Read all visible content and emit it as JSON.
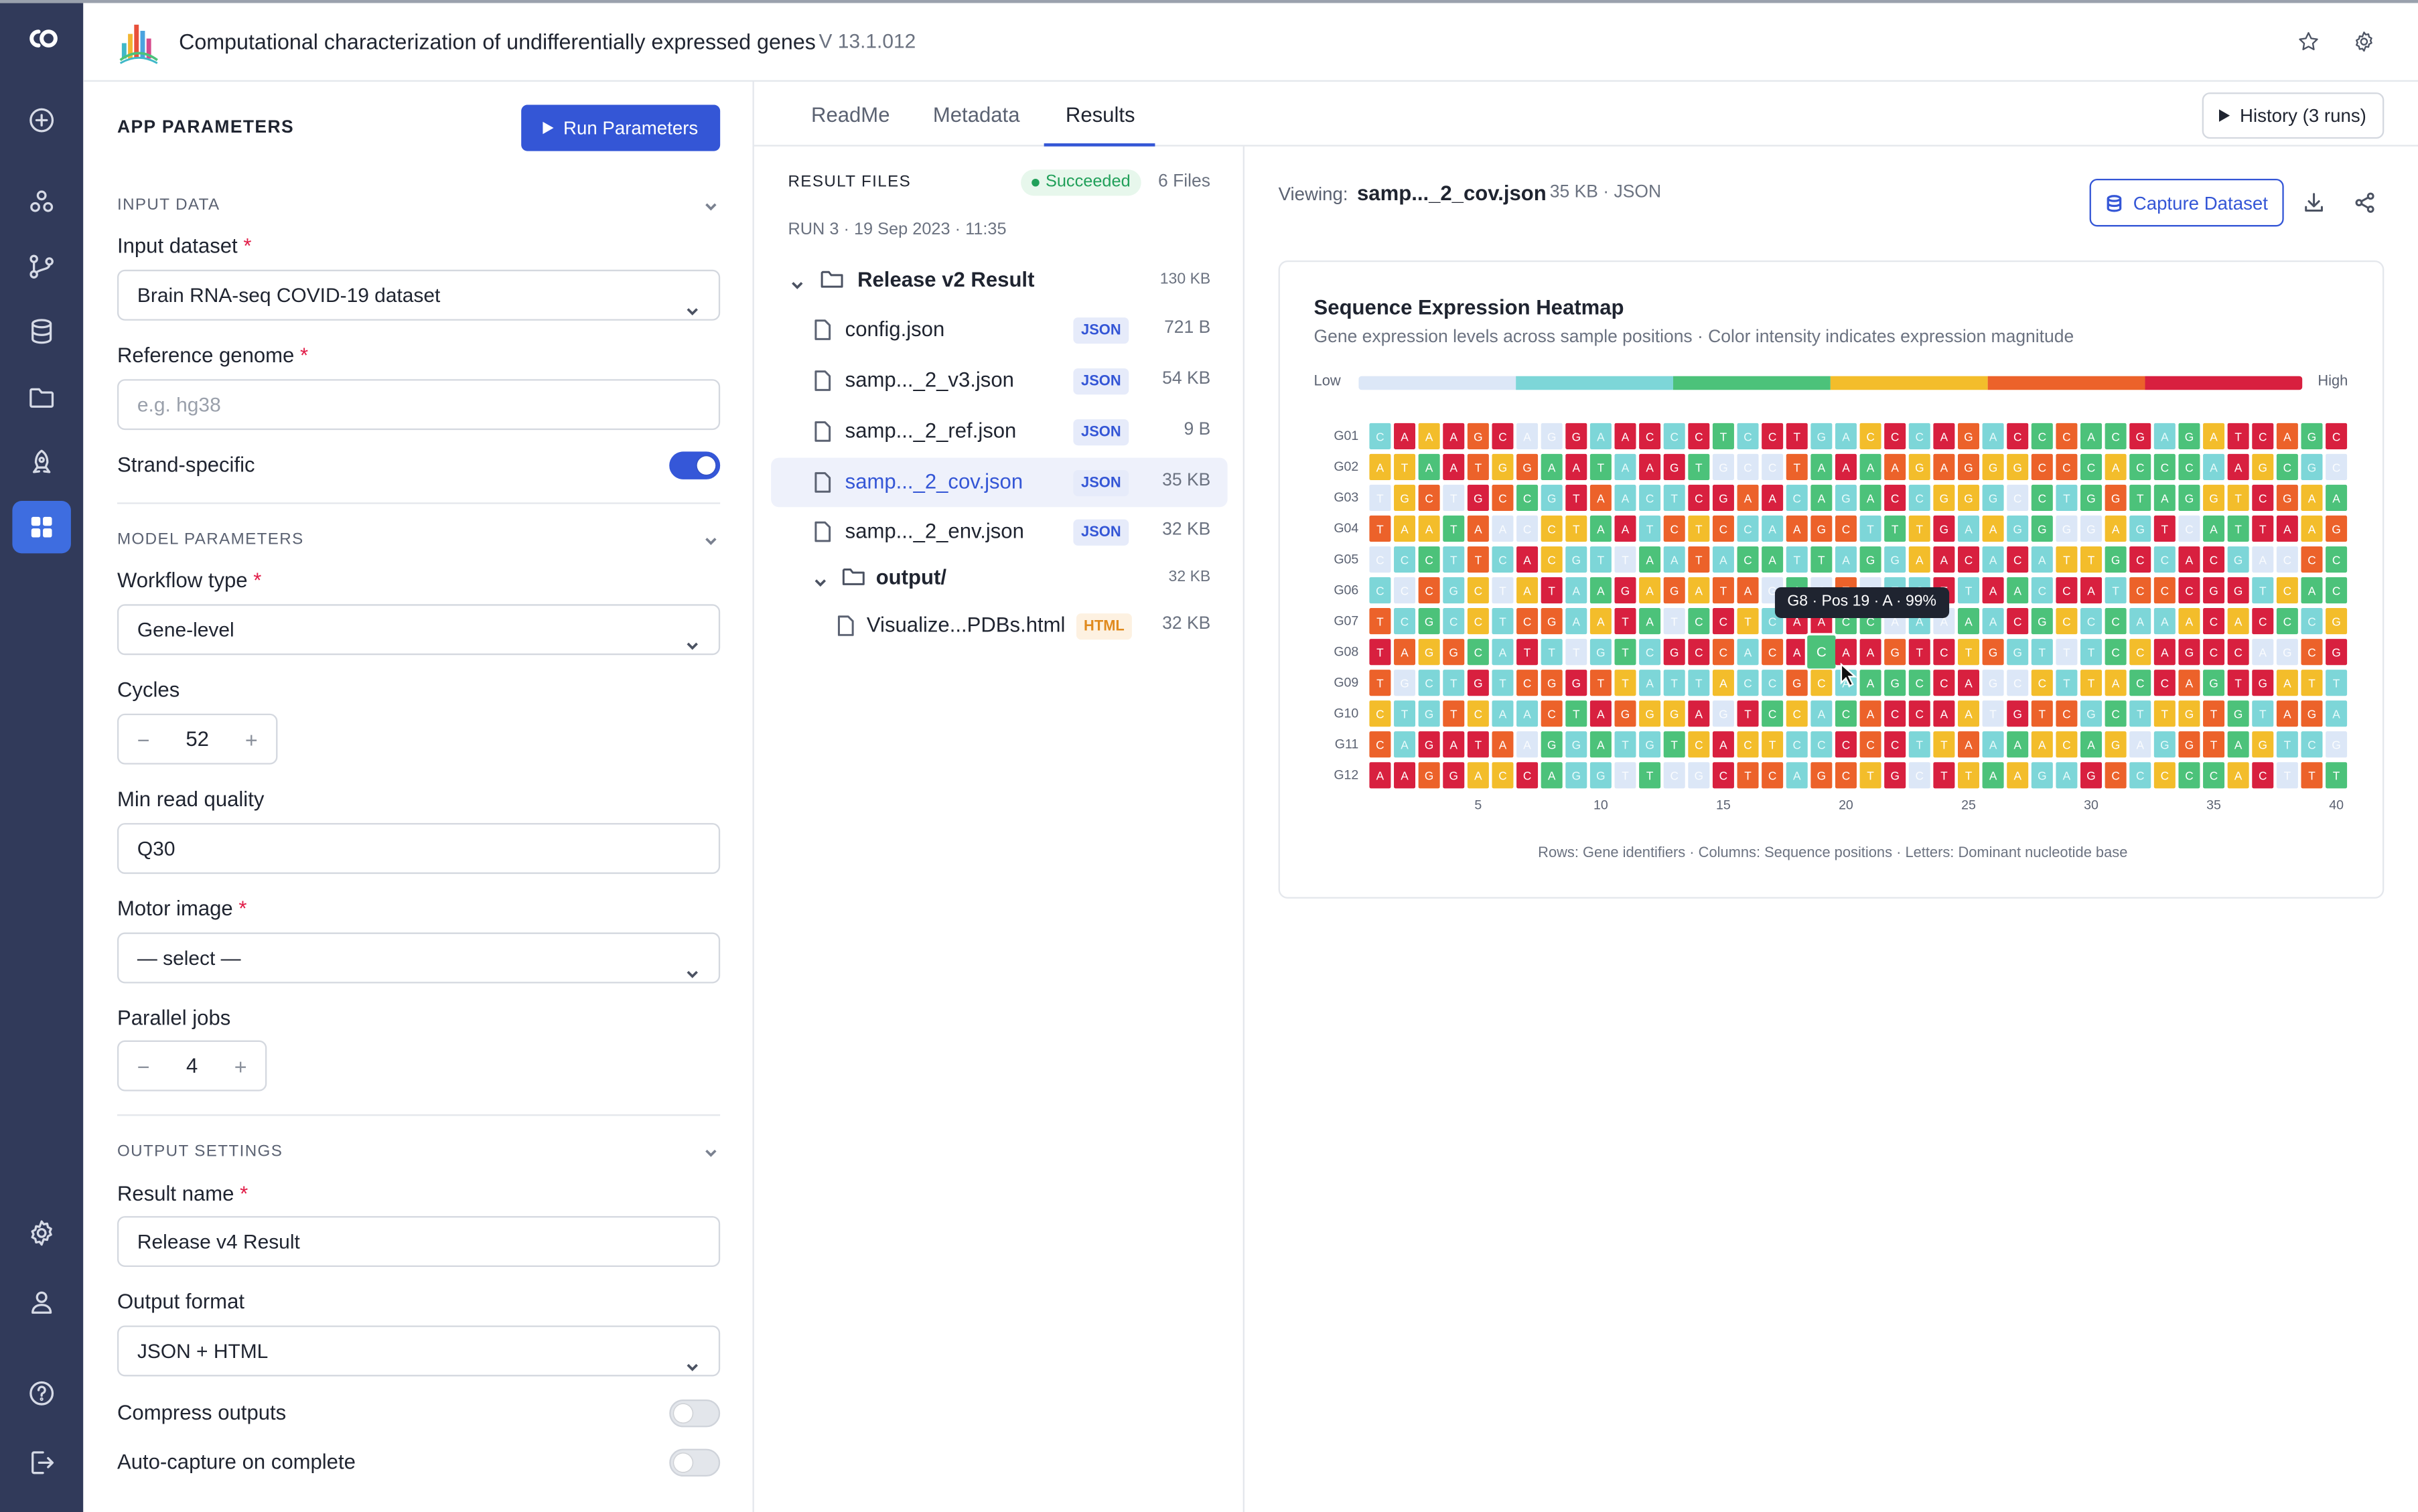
{
  "header": {
    "app_title": "Computational characterization of undifferentially expressed genes",
    "version": "V 13.1.012",
    "icons": [
      "star-icon",
      "gear-icon"
    ]
  },
  "rail": {
    "items": [
      "capsule-logo",
      "add-icon",
      "capsules-icon",
      "branch-icon",
      "database-icon",
      "folder-icon",
      "rocket-icon",
      "apps-icon",
      "settings-icon",
      "user-icon",
      "help-icon",
      "logout-icon"
    ],
    "active": "apps-icon"
  },
  "params": {
    "heading": "APP PARAMETERS",
    "run_label": "Run Parameters",
    "input_section": "INPUT DATA",
    "input_dataset_label": "Input dataset",
    "input_dataset_value": "Brain RNA-seq COVID-19 dataset",
    "reference_genome_label": "Reference genome",
    "reference_genome_placeholder": "e.g. hg38",
    "strand_specific_label": "Strand-specific",
    "strand_specific_on": true,
    "model_section": "MODEL PARAMETERS",
    "workflow_type_label": "Workflow type",
    "workflow_type_value": "Gene-level",
    "cycles_label": "Cycles",
    "cycles_value": "52",
    "min_read_quality_label": "Min read quality",
    "min_read_quality_value": "Q30",
    "motor_image_label": "Motor image",
    "motor_image_value": "— select —",
    "parallel_jobs_label": "Parallel jobs",
    "parallel_jobs_value": "4",
    "output_section": "OUTPUT SETTINGS",
    "result_name_label": "Result name",
    "result_name_value": "Release v4 Result",
    "output_format_label": "Output format",
    "output_format_value": "JSON + HTML",
    "compress_label": "Compress outputs",
    "compress_on": false,
    "autocapture_label": "Auto-capture on complete",
    "autocapture_on": false,
    "required_mark": "*",
    "minus": "−",
    "plus": "+"
  },
  "tabs": {
    "items": [
      "ReadMe",
      "Metadata",
      "Results"
    ],
    "active": "Results",
    "history_label": "History (3 runs)"
  },
  "files": {
    "title": "RESULT FILES",
    "status": "Succeeded",
    "status_color": "#21a05a",
    "count": "6 Files",
    "run_info": "RUN 3 · 19 Sep 2023 · 11:35",
    "root_folder": {
      "name": "Release v2 Result",
      "size": "130 KB"
    },
    "items": [
      {
        "name": "config.json",
        "type": "JSON",
        "size": "721 B",
        "selected": false
      },
      {
        "name": "samp..._2_v3.json",
        "type": "JSON",
        "size": "54 KB",
        "selected": false
      },
      {
        "name": "samp..._2_ref.json",
        "type": "JSON",
        "size": "9 B",
        "selected": false
      },
      {
        "name": "samp..._2_cov.json",
        "type": "JSON",
        "size": "35 KB",
        "selected": true
      },
      {
        "name": "samp..._2_env.json",
        "type": "JSON",
        "size": "32 KB",
        "selected": false
      }
    ],
    "sub_folder": {
      "name": "output/",
      "size": "32 KB"
    },
    "sub_items": [
      {
        "name": "Visualize...PDBs.html",
        "type": "HTML",
        "size": "32 KB"
      }
    ]
  },
  "viewer": {
    "label": "Viewing:",
    "file_name": "samp..._2_cov.json",
    "meta": "35 KB · JSON",
    "capture_label": "Capture Dataset",
    "icons": [
      "download-icon",
      "share-icon"
    ]
  },
  "chart_data": {
    "type": "heatmap",
    "title": "Sequence Expression Heatmap",
    "subtitle": "Gene expression levels across sample positions · Color intensity indicates expression magnitude",
    "legend_low": "Low",
    "legend_high": "High",
    "footnote": "Rows: Gene identifiers · Columns: Sequence positions · Letters: Dominant nucleotide base",
    "colors": [
      "#dce7f7",
      "#7dd6d8",
      "#4cc27a",
      "#f3bd2b",
      "#ec622a",
      "#d8203f"
    ],
    "rows": [
      "G01",
      "G02",
      "G03",
      "G04",
      "G05",
      "G06",
      "G07",
      "G08",
      "G09",
      "G10",
      "G11",
      "G12"
    ],
    "x_ticks": [
      5,
      10,
      15,
      20,
      25,
      30,
      35,
      40
    ],
    "columns": 40,
    "levels": [
      "153545005155152155113515415242251235542515",
      "332543425215520004252434433442322215321034",
      "034054215411155451212513310212422233543255",
      "433240033251434114441235131200315022553423",
      "012141531102141221212135515133251551004233",
      "104130351253434402040115152155144555132245",
      "412131441352025315522010215231211353521322",
      "543421510121554145255455341101235555004543",
      "401151445431113114312225500313325425533135",
      "311431142543350523124555305441213342144120",
      "415554021211235331154513412332301442311054",
      "554533521102005441443505323115413223504235"
    ],
    "letters": [
      "CAAAGCAGGAACCCTCCTGACCCAGACCCACGAGATCAGC",
      "ATAATGGAATAAGTGCCTAAAAGAGGGCCCACCCAAGCGC",
      "TGCTGCCGTAACTCGAACAGACCGGGCCTGGTAGGTCGAA",
      "TAATAACCTAATCTCCAAGCTTTGAAGGGGAGTCATTAAG",
      "CCCTTCACGTTAATACATTAGGAACACATTGCCACGACCC",
      "CCCGCTATAAGAGATAGACTATCTTAACCATCCCGGTCAC",
      "TCGCCTCGAATATCCTCAACCAAAAACGCCCAAACACCCG",
      "TAGGCATTTGTCGCCACACAAGTCTGGTTTCCAGCCAGCG",
      "TGCTGTCGGTTATTACCGCAAGCCAGCCTTACCAGTGATT",
      "CTGTCAACTAGGGAGTCCACACCAATGTCGCTTGTGTAGA",
      "CAGATAAGGATGTCACTCCCCCTTAAAACAGAGGTAGTCG",
      "AAGGACCAGGTTCGCTCAGCTGCTTAAGAGCCCCCACTTT"
    ],
    "hovered": {
      "row": 8,
      "col": 19,
      "base": "A",
      "percent": 99
    },
    "tooltip": "G8 · Pos 19 · A · 99%"
  }
}
